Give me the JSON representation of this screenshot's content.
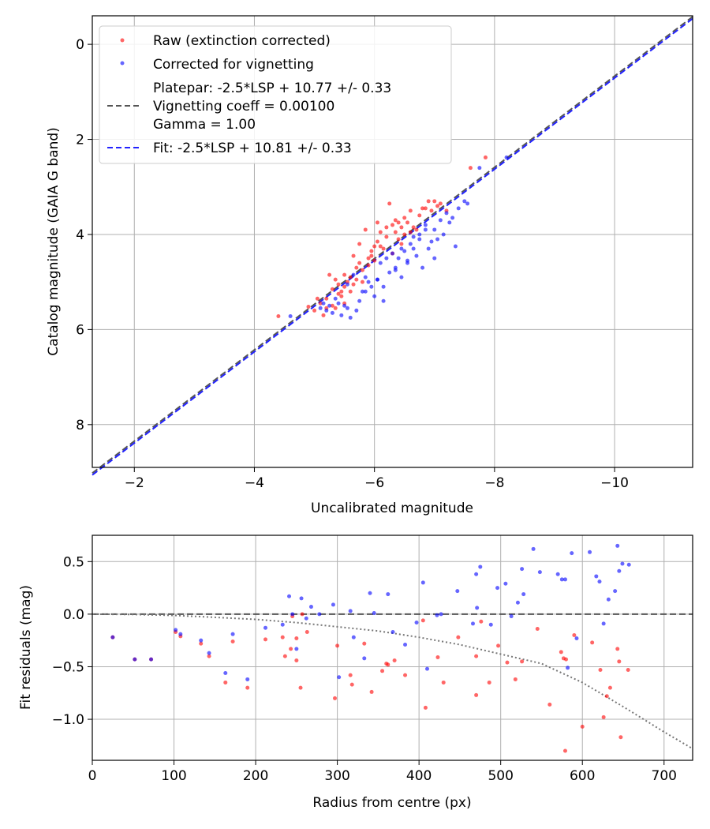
{
  "figure": {
    "background": "#ffffff"
  },
  "chart_data": [
    {
      "type": "scatter",
      "xlabel": "Uncalibrated magnitude",
      "ylabel": "Catalog magnitude (GAIA G band)",
      "xlim": [
        -1.3,
        -11.3
      ],
      "ylim": [
        8.9,
        -0.6
      ],
      "xticks": [
        -2,
        -4,
        -6,
        -8,
        -10
      ],
      "xtick_labels": [
        "−2",
        "−4",
        "−6",
        "−8",
        "−10"
      ],
      "yticks": [
        0,
        2,
        4,
        6,
        8
      ],
      "ytick_labels": [
        "0",
        "2",
        "4",
        "6",
        "8"
      ],
      "grid": true,
      "legend_position": "top-left",
      "legend": [
        {
          "label": "Raw (extinction corrected)",
          "marker": "dot",
          "color": "#ff0000"
        },
        {
          "label": "Corrected for vignetting",
          "marker": "dot",
          "color": "#0000ff"
        },
        {
          "label_lines": [
            "Platepar: -2.5*LSP + 10.77 +/- 0.33",
            "Vignetting coeff = 0.00100",
            "Gamma = 1.00"
          ],
          "marker": "dashed-line",
          "color": "#555555"
        },
        {
          "label": "Fit: -2.5*LSP + 10.81 +/- 0.33",
          "marker": "dashed-line",
          "color": "#0000ff"
        }
      ],
      "lines": [
        {
          "name": "Platepar",
          "color": "#555555",
          "style": "dashed",
          "x": [
            -1.3,
            -11.3
          ],
          "y": [
            9.02,
            -0.58
          ]
        },
        {
          "name": "Fit",
          "color": "#2222ff",
          "style": "dashed",
          "x": [
            -1.3,
            -11.3
          ],
          "y": [
            9.06,
            -0.54
          ]
        }
      ],
      "series": [
        {
          "name": "Raw (extinction corrected)",
          "color": "#ff0000",
          "x": [
            -4.4,
            -4.9,
            -5.0,
            -5.1,
            -5.15,
            -5.2,
            -5.2,
            -5.3,
            -5.3,
            -5.35,
            -5.4,
            -5.4,
            -5.45,
            -5.5,
            -5.5,
            -5.5,
            -5.55,
            -5.6,
            -5.6,
            -5.65,
            -5.7,
            -5.7,
            -5.75,
            -5.8,
            -5.8,
            -5.85,
            -5.9,
            -5.9,
            -5.95,
            -6.0,
            -6.0,
            -6.05,
            -6.1,
            -6.1,
            -6.15,
            -6.2,
            -6.2,
            -6.25,
            -6.3,
            -6.3,
            -6.35,
            -6.4,
            -6.4,
            -6.45,
            -6.5,
            -6.5,
            -6.55,
            -6.6,
            -6.6,
            -6.65,
            -6.7,
            -6.75,
            -6.8,
            -6.9,
            -6.95,
            -7.0,
            -7.05,
            -7.1,
            -7.2,
            -5.25,
            -5.05,
            -5.45,
            -5.65,
            -5.75,
            -5.95,
            -6.05,
            -6.35,
            -6.45,
            -6.85,
            -7.6,
            -7.85,
            -5.35
          ],
          "y": [
            5.72,
            5.52,
            5.6,
            5.45,
            5.7,
            5.35,
            5.55,
            5.15,
            5.5,
            4.95,
            5.25,
            5.05,
            5.3,
            4.85,
            5.1,
            5.45,
            5.0,
            4.9,
            5.2,
            5.05,
            4.7,
            4.95,
            4.6,
            4.75,
            5.0,
            3.9,
            4.5,
            4.65,
            4.35,
            4.25,
            4.55,
            4.15,
            3.95,
            4.25,
            4.3,
            3.85,
            4.05,
            3.35,
            3.8,
            4.4,
            3.95,
            3.75,
            4.1,
            4.2,
            4.0,
            3.65,
            3.75,
            3.5,
            3.95,
            3.85,
            3.9,
            3.6,
            3.45,
            3.3,
            3.5,
            3.3,
            3.4,
            3.35,
            3.5,
            4.85,
            5.35,
            5.2,
            4.45,
            4.2,
            4.45,
            3.75,
            3.7,
            3.85,
            3.45,
            2.6,
            2.38,
            5.55
          ]
        },
        {
          "name": "Corrected for vignetting",
          "color": "#0000ff",
          "x": [
            -4.6,
            -5.1,
            -5.15,
            -5.2,
            -5.25,
            -5.3,
            -5.35,
            -5.4,
            -5.45,
            -5.5,
            -5.55,
            -5.6,
            -5.7,
            -5.75,
            -5.8,
            -5.85,
            -5.9,
            -5.95,
            -6.0,
            -6.05,
            -6.1,
            -6.15,
            -6.2,
            -6.25,
            -6.3,
            -6.35,
            -6.4,
            -6.45,
            -6.5,
            -6.55,
            -6.6,
            -6.65,
            -6.7,
            -6.75,
            -6.8,
            -6.85,
            -6.9,
            -6.95,
            -7.0,
            -7.05,
            -7.1,
            -7.15,
            -7.2,
            -7.3,
            -7.4,
            -7.5,
            -7.55,
            -7.75,
            -8.2,
            -5.55,
            -5.65,
            -5.85,
            -6.05,
            -6.15,
            -6.35,
            -6.45,
            -6.55,
            -6.65,
            -6.75,
            -6.85,
            -7.0,
            -7.25,
            -7.35
          ],
          "y": [
            5.72,
            5.55,
            5.45,
            5.6,
            5.5,
            5.65,
            5.35,
            5.45,
            5.7,
            5.5,
            5.55,
            5.75,
            5.6,
            5.4,
            5.2,
            4.9,
            5.0,
            5.1,
            5.3,
            4.95,
            4.6,
            5.1,
            4.5,
            4.8,
            4.4,
            4.75,
            4.5,
            4.3,
            4.35,
            4.6,
            4.2,
            4.05,
            4.45,
            4.0,
            4.7,
            3.9,
            4.3,
            4.15,
            3.9,
            4.1,
            3.7,
            4.0,
            3.55,
            3.65,
            3.45,
            3.3,
            3.35,
            2.6,
            2.38,
            5.05,
            4.85,
            5.2,
            4.95,
            5.4,
            4.7,
            4.9,
            4.55,
            4.3,
            4.1,
            3.8,
            4.5,
            3.75,
            4.25
          ]
        }
      ]
    },
    {
      "type": "scatter",
      "xlabel": "Radius from centre (px)",
      "ylabel": "Fit residuals (mag)",
      "xlim": [
        0,
        735
      ],
      "ylim": [
        -1.39,
        0.75
      ],
      "xticks": [
        0,
        100,
        200,
        300,
        400,
        500,
        600,
        700
      ],
      "xtick_labels": [
        "0",
        "100",
        "200",
        "300",
        "400",
        "500",
        "600",
        "700"
      ],
      "yticks": [
        0.5,
        0.0,
        -0.5,
        -1.0
      ],
      "ytick_labels": [
        "0.5",
        "0.0",
        "−0.5",
        "−1.0"
      ],
      "grid": true,
      "lines": [
        {
          "name": "zero",
          "color": "#555555",
          "style": "dashed",
          "x": [
            0,
            735
          ],
          "y": [
            0,
            0
          ]
        },
        {
          "name": "vignetting model",
          "color": "#777777",
          "style": "dotted",
          "x": [
            0,
            50,
            100,
            150,
            200,
            250,
            300,
            350,
            400,
            450,
            500,
            550,
            600,
            650,
            700,
            735
          ],
          "y": [
            0,
            -0.003,
            -0.012,
            -0.03,
            -0.05,
            -0.08,
            -0.12,
            -0.16,
            -0.22,
            -0.29,
            -0.38,
            -0.47,
            -0.65,
            -0.88,
            -1.12,
            -1.28
          ]
        }
      ],
      "series": [
        {
          "name": "Raw",
          "color": "#ff0000",
          "x": [
            25,
            52,
            72,
            102,
            108,
            133,
            143,
            163,
            172,
            190,
            212,
            233,
            236,
            243,
            250,
            255,
            257,
            263,
            297,
            316,
            318,
            333,
            342,
            355,
            362,
            370,
            383,
            405,
            423,
            408,
            430,
            448,
            470,
            476,
            486,
            497,
            508,
            518,
            526,
            545,
            560,
            574,
            577,
            579,
            590,
            612,
            622,
            626,
            630,
            634,
            643,
            645,
            647,
            656,
            600,
            580,
            470,
            360,
            300,
            250,
            245
          ],
          "y": [
            -0.22,
            -0.43,
            -0.43,
            -0.17,
            -0.21,
            -0.28,
            -0.4,
            -0.65,
            -0.26,
            -0.7,
            -0.24,
            -0.22,
            -0.4,
            -0.33,
            -0.44,
            -0.7,
            0.0,
            -0.17,
            -0.8,
            -0.58,
            -0.67,
            -0.28,
            -0.74,
            -0.54,
            -0.48,
            -0.44,
            -0.58,
            -0.06,
            -0.41,
            -0.89,
            -0.65,
            -0.22,
            -0.77,
            -0.07,
            -0.65,
            -0.3,
            -0.46,
            -0.62,
            -0.45,
            -0.14,
            -0.86,
            -0.36,
            -0.42,
            -1.3,
            -0.2,
            -0.27,
            -0.53,
            -0.98,
            -0.78,
            -0.7,
            -0.33,
            -0.45,
            -1.17,
            -0.53,
            -1.07,
            -0.43,
            -0.4,
            -0.47,
            -0.3,
            -0.23,
            -0.02
          ]
        },
        {
          "name": "Corrected",
          "color": "#0000ff",
          "x": [
            25,
            52,
            72,
            102,
            108,
            133,
            143,
            163,
            172,
            190,
            212,
            233,
            241,
            245,
            250,
            256,
            262,
            268,
            278,
            295,
            302,
            316,
            320,
            333,
            340,
            345,
            362,
            368,
            383,
            397,
            405,
            410,
            422,
            427,
            447,
            466,
            470,
            471,
            475,
            488,
            496,
            506,
            513,
            521,
            526,
            528,
            540,
            548,
            570,
            575,
            579,
            582,
            587,
            593,
            609,
            617,
            621,
            626,
            632,
            640,
            643,
            645,
            649,
            657
          ],
          "y": [
            -0.22,
            -0.43,
            -0.43,
            -0.15,
            -0.19,
            -0.25,
            -0.37,
            -0.56,
            -0.19,
            -0.62,
            -0.13,
            -0.1,
            0.17,
            0.0,
            -0.33,
            0.15,
            -0.04,
            0.07,
            0.0,
            0.09,
            -0.6,
            0.03,
            -0.22,
            -0.42,
            0.2,
            0.01,
            0.19,
            -0.17,
            -0.29,
            -0.08,
            0.3,
            -0.52,
            -0.01,
            0.0,
            0.22,
            -0.09,
            0.38,
            0.06,
            0.45,
            -0.1,
            0.25,
            0.29,
            -0.02,
            0.11,
            0.43,
            0.19,
            0.62,
            0.4,
            0.38,
            0.33,
            0.33,
            -0.51,
            0.58,
            -0.23,
            0.59,
            0.36,
            0.31,
            -0.09,
            0.14,
            0.22,
            0.65,
            0.41,
            0.48,
            0.47
          ]
        }
      ]
    }
  ]
}
